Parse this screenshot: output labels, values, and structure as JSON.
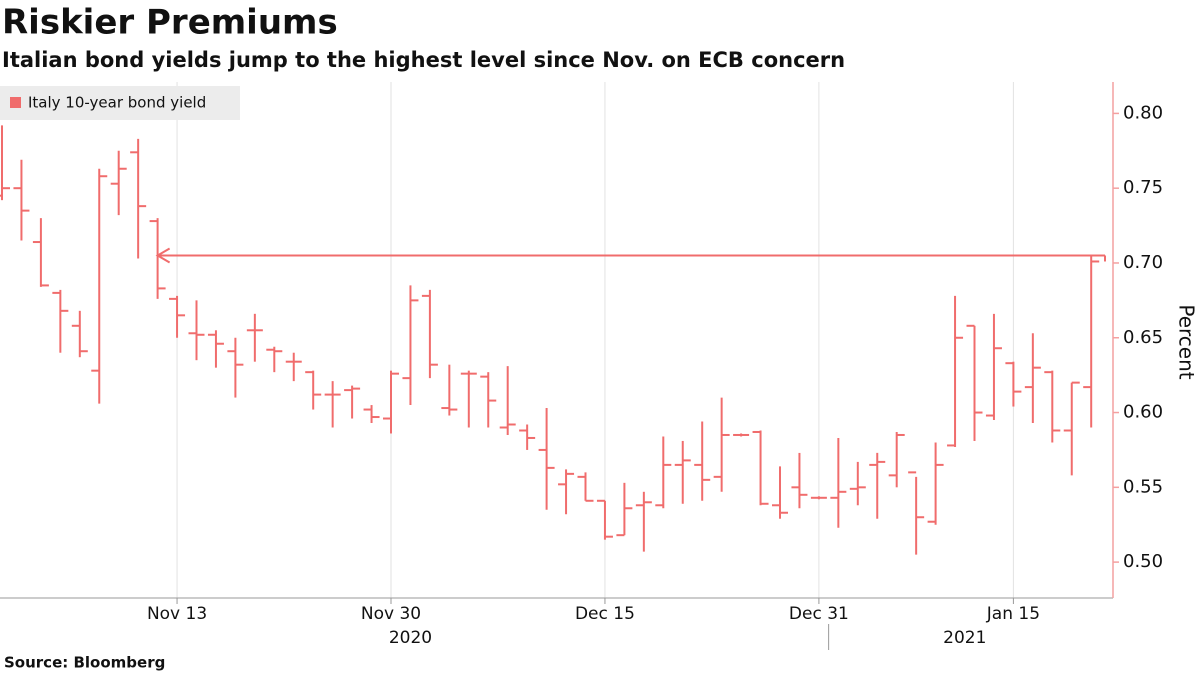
{
  "chart_data": {
    "type": "ohlc",
    "title": "Riskier Premiums",
    "subtitle": "Italian bond yields jump to the highest level since Nov. on ECB concern",
    "source": "Source: Bloomberg",
    "y_label": "Percent",
    "legend": "top-left",
    "x": [
      "2020-11-02",
      "2020-11-03",
      "2020-11-04",
      "2020-11-05",
      "2020-11-06",
      "2020-11-09",
      "2020-11-10",
      "2020-11-11",
      "2020-11-12",
      "2020-11-13",
      "2020-11-16",
      "2020-11-17",
      "2020-11-18",
      "2020-11-19",
      "2020-11-20",
      "2020-11-23",
      "2020-11-24",
      "2020-11-25",
      "2020-11-26",
      "2020-11-27",
      "2020-11-30",
      "2020-12-01",
      "2020-12-02",
      "2020-12-03",
      "2020-12-04",
      "2020-12-07",
      "2020-12-08",
      "2020-12-09",
      "2020-12-10",
      "2020-12-11",
      "2020-12-14",
      "2020-12-15",
      "2020-12-16",
      "2020-12-17",
      "2020-12-18",
      "2020-12-21",
      "2020-12-22",
      "2020-12-23",
      "2020-12-24",
      "2020-12-28",
      "2020-12-29",
      "2020-12-30",
      "2020-12-31",
      "2021-01-04",
      "2021-01-05",
      "2021-01-06",
      "2021-01-07",
      "2021-01-08",
      "2021-01-11",
      "2021-01-12",
      "2021-01-13",
      "2021-01-14",
      "2021-01-15",
      "2021-01-18",
      "2021-01-19",
      "2021-01-20",
      "2021-01-21"
    ],
    "series": [
      {
        "name": "Italy 10-year bond yield",
        "color": "#f06c6c",
        "open": [
          0.745,
          0.75,
          0.714,
          0.68,
          0.658,
          0.628,
          0.753,
          0.774,
          0.728,
          0.676,
          0.653,
          0.652,
          0.641,
          0.655,
          0.642,
          0.634,
          0.627,
          0.612,
          0.615,
          0.602,
          0.596,
          0.623,
          0.678,
          0.603,
          0.626,
          0.624,
          0.59,
          0.588,
          0.575,
          0.552,
          0.557,
          0.541,
          0.518,
          0.538,
          0.538,
          0.565,
          0.565,
          0.557,
          0.585,
          0.587,
          0.538,
          0.55,
          0.543,
          0.543,
          0.549,
          0.565,
          0.558,
          0.56,
          0.527,
          0.578,
          0.658,
          0.598,
          0.633,
          0.617,
          0.627,
          0.588,
          0.617
        ],
        "high": [
          0.792,
          0.769,
          0.73,
          0.682,
          0.668,
          0.763,
          0.775,
          0.783,
          0.73,
          0.678,
          0.675,
          0.655,
          0.65,
          0.666,
          0.644,
          0.64,
          0.628,
          0.621,
          0.618,
          0.605,
          0.628,
          0.685,
          0.682,
          0.632,
          0.628,
          0.627,
          0.631,
          0.592,
          0.603,
          0.562,
          0.56,
          0.541,
          0.553,
          0.547,
          0.584,
          0.581,
          0.594,
          0.61,
          0.586,
          0.588,
          0.564,
          0.573,
          0.544,
          0.583,
          0.567,
          0.573,
          0.587,
          0.557,
          0.58,
          0.678,
          0.658,
          0.666,
          0.634,
          0.653,
          0.628,
          0.62,
          0.705
        ],
        "low": [
          0.742,
          0.715,
          0.684,
          0.64,
          0.637,
          0.606,
          0.732,
          0.703,
          0.676,
          0.65,
          0.635,
          0.63,
          0.61,
          0.634,
          0.627,
          0.621,
          0.602,
          0.59,
          0.596,
          0.593,
          0.586,
          0.605,
          0.623,
          0.598,
          0.59,
          0.59,
          0.585,
          0.575,
          0.535,
          0.532,
          0.541,
          0.515,
          0.518,
          0.507,
          0.536,
          0.539,
          0.541,
          0.547,
          0.584,
          0.538,
          0.529,
          0.536,
          0.542,
          0.523,
          0.538,
          0.529,
          0.55,
          0.505,
          0.525,
          0.577,
          0.581,
          0.595,
          0.604,
          0.593,
          0.58,
          0.558,
          0.59
        ],
        "close": [
          0.75,
          0.735,
          0.685,
          0.668,
          0.641,
          0.758,
          0.763,
          0.738,
          0.683,
          0.665,
          0.652,
          0.646,
          0.632,
          0.655,
          0.641,
          0.634,
          0.612,
          0.612,
          0.616,
          0.597,
          0.626,
          0.675,
          0.632,
          0.602,
          0.626,
          0.608,
          0.592,
          0.583,
          0.563,
          0.559,
          0.541,
          0.517,
          0.536,
          0.54,
          0.565,
          0.568,
          0.555,
          0.585,
          0.585,
          0.539,
          0.533,
          0.545,
          0.543,
          0.547,
          0.55,
          0.567,
          0.585,
          0.53,
          0.565,
          0.65,
          0.6,
          0.643,
          0.614,
          0.63,
          0.588,
          0.62,
          0.701
        ]
      }
    ],
    "highlight": {
      "y": 0.705,
      "x_from": "2021-01-21",
      "x_to": "2020-11-12"
    },
    "ylim": [
      0.476,
      0.821
    ],
    "yticks": [
      {
        "value": 0.5,
        "label": "0.50"
      },
      0.55,
      {
        "value": 0.6,
        "label": "0.60"
      },
      0.65,
      {
        "value": 0.7,
        "label": "0.70"
      },
      0.75,
      {
        "value": 0.8,
        "label": "0.80"
      }
    ],
    "xticks": [
      {
        "value": "2020-11-13",
        "label": "Nov 13"
      },
      {
        "value": "2020-11-30",
        "label": "Nov 30"
      },
      {
        "value": "2020-12-15",
        "label": "Dec 15"
      },
      {
        "value": "2020-12-31",
        "label": "Dec 31"
      },
      {
        "value": "2021-01-15",
        "label": "Jan 15"
      }
    ],
    "year_labels": [
      "2020",
      "2021"
    ],
    "grid": true
  }
}
